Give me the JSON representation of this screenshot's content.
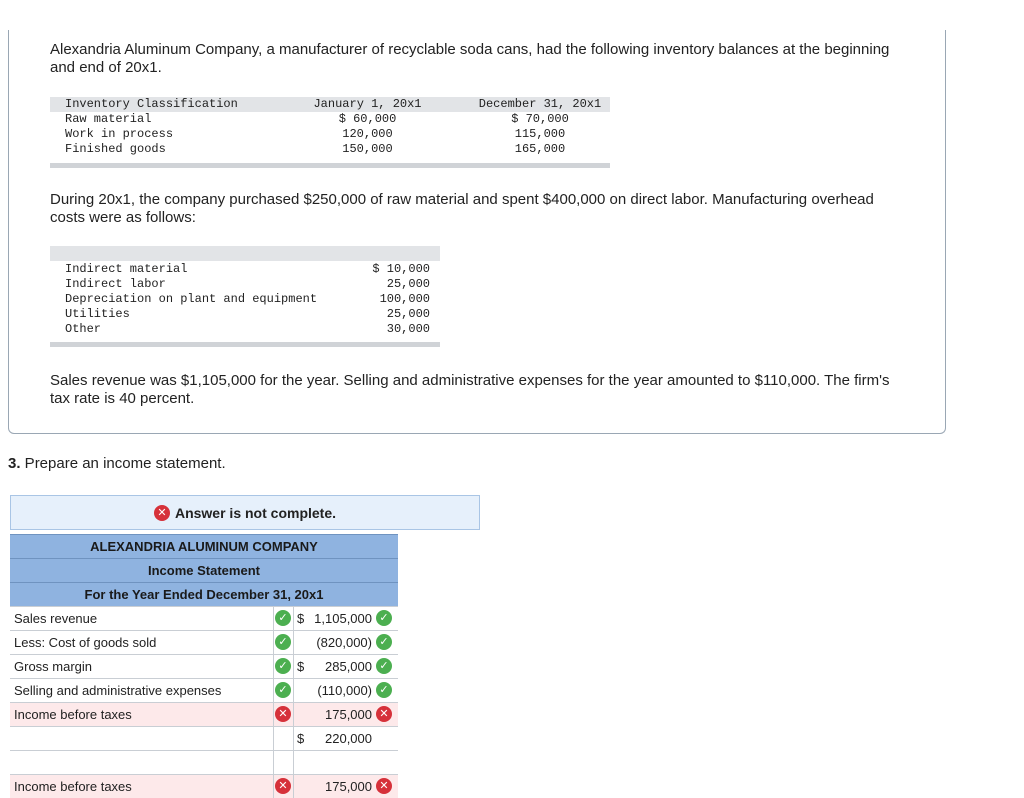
{
  "problem": {
    "intro": "Alexandria Aluminum Company, a manufacturer of recyclable soda cans, had the following inventory balances at the beginning and end of 20x1.",
    "inventory_table": {
      "headers": [
        "Inventory Classification",
        "January 1, 20x1",
        "December 31, 20x1"
      ],
      "rows": [
        [
          "Raw material",
          "$ 60,000",
          "$ 70,000"
        ],
        [
          "Work in process",
          "120,000",
          "115,000"
        ],
        [
          "Finished goods",
          "150,000",
          "165,000"
        ]
      ]
    },
    "overhead_intro": "During 20x1, the company purchased $250,000 of raw material and spent $400,000 on direct labor. Manufacturing overhead costs were as follows:",
    "overhead_table": {
      "rows": [
        [
          "Indirect material",
          "$ 10,000"
        ],
        [
          "Indirect labor",
          "25,000"
        ],
        [
          "Depreciation on plant and equipment",
          "100,000"
        ],
        [
          "Utilities",
          "25,000"
        ],
        [
          "Other",
          "30,000"
        ]
      ]
    },
    "sales_text": "Sales revenue was $1,105,000 for the year. Selling and administrative expenses for the year amounted to $110,000. The firm's tax rate is 40 percent."
  },
  "requirement": {
    "number": "3.",
    "text": " Prepare an income statement."
  },
  "notice": {
    "text": "Answer is not complete."
  },
  "statement": {
    "company": "ALEXANDRIA ALUMINUM COMPANY",
    "title": "Income Statement",
    "period": "For the Year Ended December 31, 20x1",
    "rows": [
      {
        "label": "Sales revenue",
        "currency": "$",
        "amount": "1,105,000",
        "label_status": "correct",
        "amount_status": "correct"
      },
      {
        "label": "Less: Cost of goods sold",
        "currency": "",
        "amount": "(820,000)",
        "label_status": "correct",
        "amount_status": "correct"
      },
      {
        "label": "Gross margin",
        "currency": "$",
        "amount": "285,000",
        "label_status": "correct",
        "amount_status": "correct"
      },
      {
        "label": "Selling and administrative expenses",
        "currency": "",
        "amount": "(110,000)",
        "label_status": "correct",
        "amount_status": "correct"
      },
      {
        "label": "Income before taxes",
        "currency": "",
        "amount": "175,000",
        "label_status": "incorrect",
        "amount_status": "incorrect"
      },
      {
        "label": "",
        "currency": "$",
        "amount": "220,000",
        "label_status": "none",
        "amount_status": "none"
      },
      {
        "label": "",
        "currency": "",
        "amount": "",
        "label_status": "none",
        "amount_status": "none"
      },
      {
        "label": "Income before taxes",
        "currency": "",
        "amount": "175,000",
        "label_status": "incorrect",
        "amount_status": "incorrect"
      }
    ]
  },
  "icons": {
    "correct": "check-circle-icon",
    "incorrect": "x-circle-icon",
    "correct_color": "#4caf50",
    "incorrect_color": "#d6313a"
  }
}
